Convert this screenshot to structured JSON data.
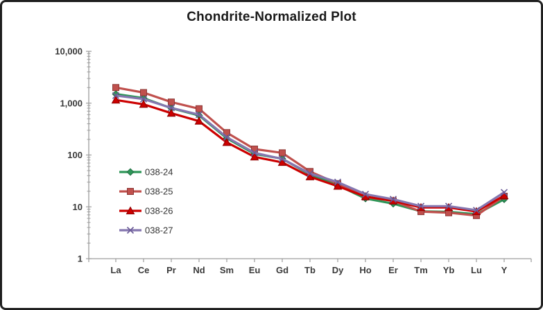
{
  "title": "Chondrite-Normalized Plot",
  "chart_data": {
    "type": "line",
    "title": "Chondrite-Normalized Plot",
    "y_scale": "log",
    "ylim": [
      1,
      10000
    ],
    "y_tick_labels": [
      "10,000",
      "1,000",
      "100",
      "10",
      "1"
    ],
    "y_tick_values": [
      10000,
      1000,
      100,
      10,
      1
    ],
    "xlabel": "",
    "ylabel": "",
    "grid": false,
    "legend_position": "inside-left",
    "axis_color": "#9c9c9c",
    "label_color": "#3a3a3a",
    "categories": [
      "La",
      "Ce",
      "Pr",
      "Nd",
      "Sm",
      "Eu",
      "Gd",
      "Tb",
      "Dy",
      "Ho",
      "Er",
      "Tm",
      "Yb",
      "Lu",
      "Y"
    ],
    "series": [
      {
        "name": "038-24",
        "marker": "diamond",
        "color": "#2E9658",
        "edge": "#1E6B40",
        "values": [
          1500,
          1250,
          800,
          580,
          210,
          105,
          85,
          42,
          26,
          14.5,
          11.5,
          8.2,
          8.0,
          7.2,
          14
        ]
      },
      {
        "name": "038-25",
        "marker": "square",
        "color": "#C0504D",
        "edge": "#8C3836",
        "values": [
          2000,
          1600,
          1050,
          780,
          270,
          130,
          110,
          48,
          28,
          15.5,
          13,
          8.1,
          7.7,
          6.8,
          16
        ]
      },
      {
        "name": "038-26",
        "marker": "triangle",
        "color": "#CC0000",
        "edge": "#8B0000",
        "values": [
          1150,
          950,
          640,
          450,
          175,
          92,
          72,
          38,
          25,
          15.8,
          13,
          9.7,
          9.7,
          8.1,
          16.5
        ]
      },
      {
        "name": "038-27",
        "marker": "x",
        "color": "#8576AF",
        "edge": "#6A5A96",
        "values": [
          1400,
          1200,
          810,
          600,
          220,
          110,
          84,
          44,
          30,
          17.5,
          14,
          10.3,
          10.3,
          8.6,
          19
        ]
      }
    ]
  }
}
